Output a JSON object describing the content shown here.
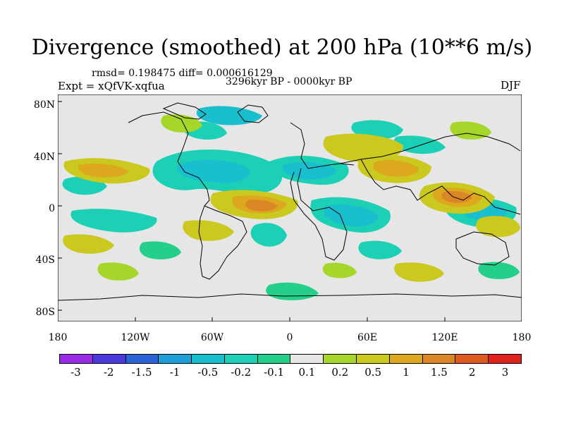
{
  "title": "Divergence (smoothed) at 200 hPa (10**6 m/s)",
  "stats": "rmsd= 0.198475  diff= 0.000616129",
  "period": "3296kyr BP - 0000kyr BP",
  "expt": "Expt = xQfVK-xqfua",
  "season": "DJF",
  "lat_labels": [
    "80N",
    "40N",
    "0",
    "40S",
    "80S"
  ],
  "lon_labels": [
    "180",
    "120W",
    "60W",
    "0",
    "60E",
    "120E",
    "180"
  ],
  "colorbar": {
    "labels": [
      "-3",
      "-2",
      "-1.5",
      "-1",
      "-0.5",
      "-0.2",
      "-0.1",
      "0.1",
      "0.2",
      "0.5",
      "1",
      "1.5",
      "2",
      "3"
    ],
    "colors": [
      "#9a2be8",
      "#4b3adb",
      "#2a62d8",
      "#1c9ed8",
      "#19bfcf",
      "#1bd0b4",
      "#24d089",
      "#e6e6e6",
      "#a7d62a",
      "#cbc820",
      "#dca81e",
      "#dc8626",
      "#de5a1e",
      "#e0221a"
    ]
  }
}
